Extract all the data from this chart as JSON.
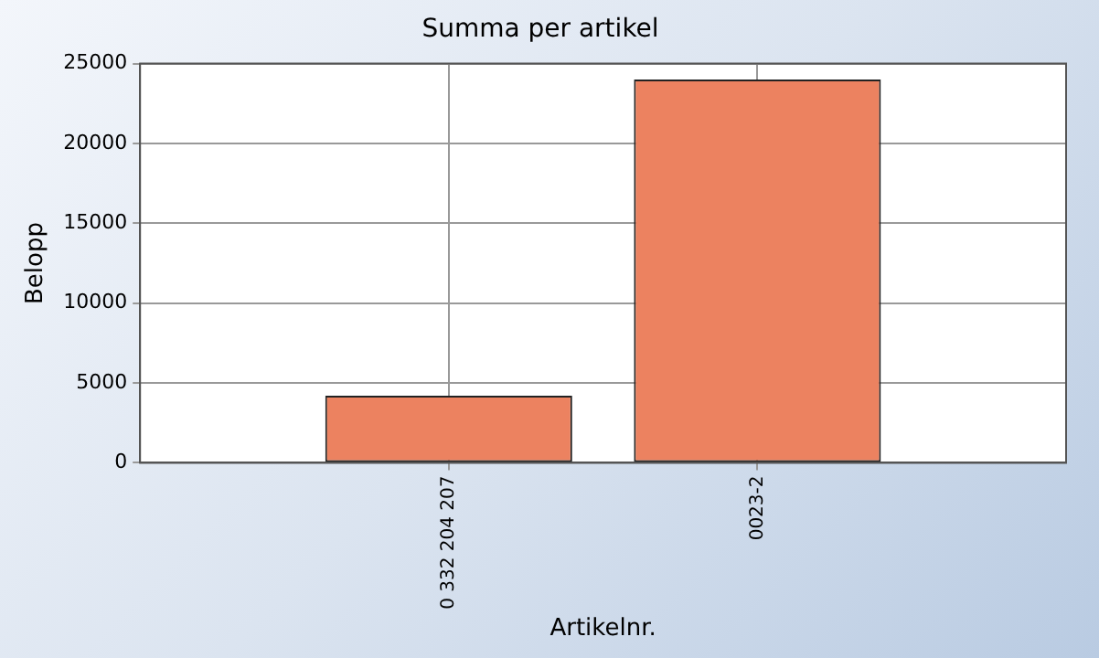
{
  "chart_data": {
    "type": "bar",
    "title": "Summa per artikel",
    "xlabel": "Artikelnr.",
    "ylabel": "Belopp",
    "categories": [
      "0 332 204 207",
      "0023-2"
    ],
    "values": [
      4200,
      24000
    ],
    "color": "#ec8260",
    "ylim": [
      0,
      25000
    ],
    "yticks": [
      0,
      5000,
      10000,
      15000,
      20000,
      25000
    ],
    "grid": true,
    "legend": false
  }
}
